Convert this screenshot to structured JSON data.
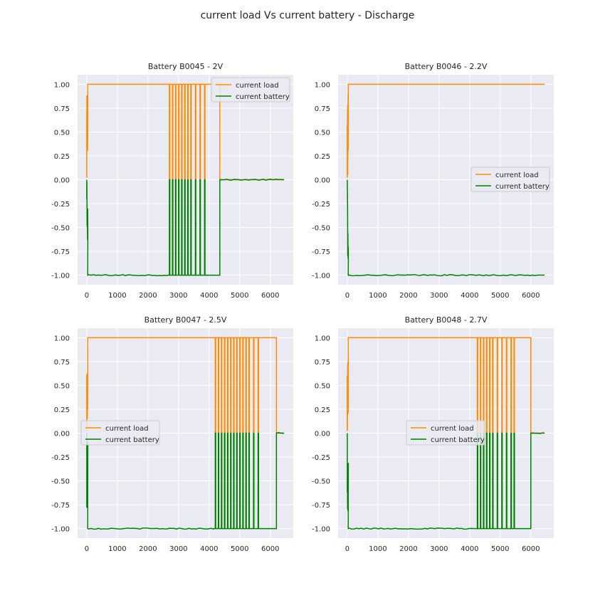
{
  "figure": {
    "title": "current load Vs current battery - Discharge"
  },
  "colors": {
    "background": "#eaeaf2",
    "grid": "#ffffff",
    "current_load": "#ff8c00",
    "current_battery": "#008000"
  },
  "chart_data": [
    {
      "type": "line",
      "title": "Battery B0045 - 2V",
      "xlim": [
        -300,
        6750
      ],
      "ylim": [
        -1.1,
        1.1
      ],
      "xticks": [
        0,
        1000,
        2000,
        3000,
        4000,
        5000,
        6000
      ],
      "yticks": [
        "1.00",
        "0.75",
        "0.50",
        "0.25",
        "0.00",
        "-0.25",
        "-0.50",
        "-0.75",
        "-1.00"
      ],
      "legend": {
        "position": "top-right"
      },
      "discharge_end": 2650,
      "pulse_end": 4350,
      "data_end": 6450,
      "pulses": [
        2700,
        2800,
        2900,
        3000,
        3100,
        3200,
        3300,
        3400,
        3550,
        3700,
        3850,
        4350
      ],
      "series": [
        {
          "name": "current load",
          "color": "#ff8c00"
        },
        {
          "name": "current battery",
          "color": "#008000"
        }
      ]
    },
    {
      "type": "line",
      "title": "Battery B0046 - 2.2V",
      "xlim": [
        -300,
        6750
      ],
      "ylim": [
        -1.1,
        1.1
      ],
      "xticks": [
        0,
        1000,
        2000,
        3000,
        4000,
        5000,
        6000
      ],
      "yticks": [
        "1.00",
        "0.75",
        "0.50",
        "0.25",
        "0.00",
        "-0.25",
        "-0.50",
        "-0.75",
        "-1.00"
      ],
      "legend": {
        "position": "center-right"
      },
      "discharge_end": 6450,
      "pulse_end": 6450,
      "data_end": 6450,
      "pulses": [],
      "series": [
        {
          "name": "current load",
          "color": "#ff8c00"
        },
        {
          "name": "current battery",
          "color": "#008000"
        }
      ]
    },
    {
      "type": "line",
      "title": "Battery B0047 - 2.5V",
      "xlim": [
        -300,
        6750
      ],
      "ylim": [
        -1.1,
        1.1
      ],
      "xticks": [
        0,
        1000,
        2000,
        3000,
        4000,
        5000,
        6000
      ],
      "yticks": [
        "1.00",
        "0.75",
        "0.50",
        "0.25",
        "0.00",
        "-0.25",
        "-0.50",
        "-0.75",
        "-1.00"
      ],
      "legend": {
        "position": "center-left"
      },
      "discharge_end": 4150,
      "pulse_end": 6200,
      "data_end": 6450,
      "pulses": [
        4200,
        4300,
        4400,
        4500,
        4600,
        4700,
        4800,
        4900,
        5000,
        5100,
        5200,
        5300,
        5450,
        5600,
        6200
      ],
      "series": [
        {
          "name": "current load",
          "color": "#ff8c00"
        },
        {
          "name": "current battery",
          "color": "#008000"
        }
      ]
    },
    {
      "type": "line",
      "title": "Battery B0048 - 2.7V",
      "xlim": [
        -300,
        6750
      ],
      "ylim": [
        -1.1,
        1.1
      ],
      "xticks": [
        0,
        1000,
        2000,
        3000,
        4000,
        5000,
        6000
      ],
      "yticks": [
        "1.00",
        "0.75",
        "0.50",
        "0.25",
        "0.00",
        "-0.25",
        "-0.50",
        "-0.75",
        "-1.00"
      ],
      "legend": {
        "position": "center"
      },
      "discharge_end": 4200,
      "pulse_end": 6000,
      "data_end": 6450,
      "pulses": [
        4250,
        4350,
        4450,
        4550,
        4650,
        4750,
        4900,
        5050,
        5200,
        5350,
        5450,
        6000
      ],
      "series": [
        {
          "name": "current load",
          "color": "#ff8c00"
        },
        {
          "name": "current battery",
          "color": "#008000"
        }
      ]
    }
  ]
}
